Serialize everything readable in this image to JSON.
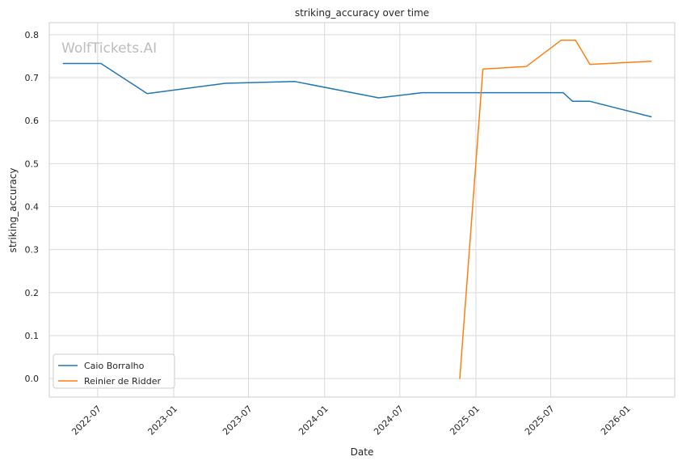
{
  "chart_data": {
    "type": "line",
    "title": "striking_accuracy over time",
    "xlabel": "Date",
    "ylabel": "striking_accuracy",
    "watermark": "WolfTickets.AI",
    "grid": true,
    "legend_position": "lower-left",
    "xlim": [
      "2022-03-06",
      "2026-04-27"
    ],
    "ylim": [
      -0.043,
      0.828
    ],
    "x_ticks": [
      "2022-07",
      "2023-01",
      "2023-07",
      "2024-01",
      "2024-07",
      "2025-01",
      "2025-07",
      "2026-01"
    ],
    "y_ticks": [
      "0.0",
      "0.1",
      "0.2",
      "0.3",
      "0.4",
      "0.5",
      "0.6",
      "0.7",
      "0.8"
    ],
    "series": [
      {
        "name": "Caio Borralho",
        "color": "#1f77b4",
        "points": [
          {
            "x": "2022-04-09",
            "y": 0.733
          },
          {
            "x": "2022-07-09",
            "y": 0.733
          },
          {
            "x": "2022-10-29",
            "y": 0.663
          },
          {
            "x": "2023-05-06",
            "y": 0.687
          },
          {
            "x": "2023-10-21",
            "y": 0.691
          },
          {
            "x": "2024-05-11",
            "y": 0.653
          },
          {
            "x": "2024-08-24",
            "y": 0.665
          },
          {
            "x": "2025-07-31",
            "y": 0.665
          },
          {
            "x": "2025-08-23",
            "y": 0.645
          },
          {
            "x": "2025-10-04",
            "y": 0.645
          },
          {
            "x": "2026-03-01",
            "y": 0.609
          }
        ]
      },
      {
        "name": "Reinier de Ridder",
        "color": "#ff7f0e",
        "points": [
          {
            "x": "2024-11-23",
            "y": 0.0
          },
          {
            "x": "2025-01-18",
            "y": 0.72
          },
          {
            "x": "2025-05-03",
            "y": 0.726
          },
          {
            "x": "2025-07-26",
            "y": 0.787
          },
          {
            "x": "2025-08-30",
            "y": 0.787
          },
          {
            "x": "2025-10-04",
            "y": 0.731
          },
          {
            "x": "2026-03-01",
            "y": 0.738
          }
        ]
      }
    ]
  }
}
